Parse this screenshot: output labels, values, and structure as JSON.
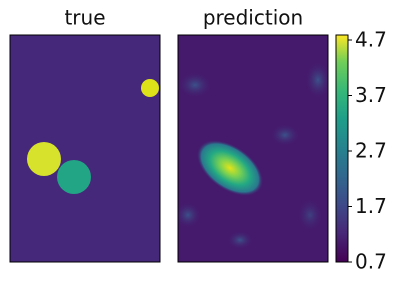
{
  "chart_data": [
    {
      "type": "heatmap",
      "title": "true"
    },
    {
      "type": "heatmap",
      "title": "prediction",
      "colorbar": true,
      "clim": [
        0.7,
        4.79
      ],
      "cticks": [
        0.7,
        1.7,
        2.7,
        3.7,
        4.7
      ]
    }
  ]
}
